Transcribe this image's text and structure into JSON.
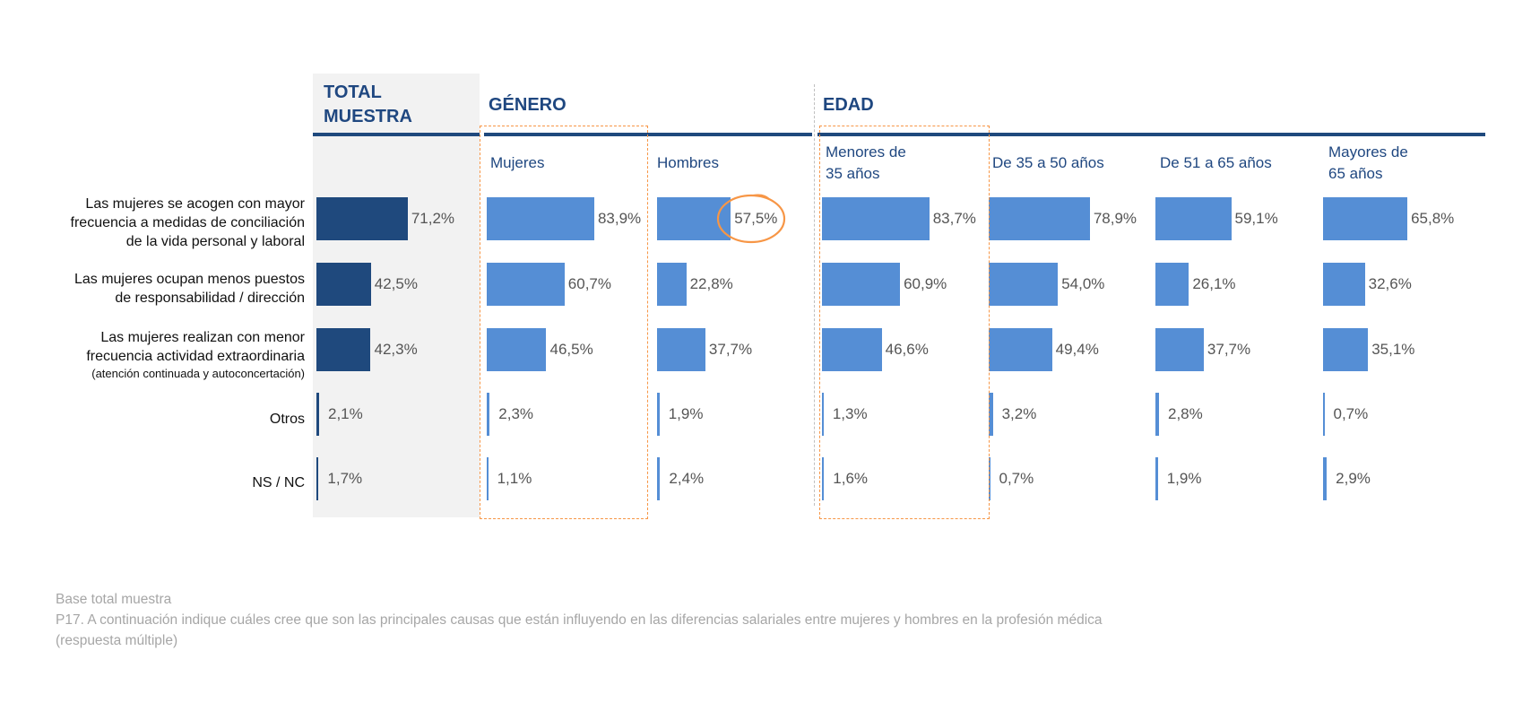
{
  "colors": {
    "total_bar": "#1f497d",
    "bar": "#558ed5",
    "header_blue": "#1f4780",
    "highlight": "#f79646",
    "panel_bg": "#f2f2f2"
  },
  "chart_data": {
    "type": "bar",
    "orientation": "horizontal",
    "categories": [
      {
        "lines": [
          "Las mujeres se acogen con mayor",
          "frecuencia a medidas de conciliación",
          "de la vida personal y laboral"
        ],
        "sub": ""
      },
      {
        "lines": [
          "Las mujeres ocupan menos puestos",
          "de responsabilidad / dirección"
        ],
        "sub": ""
      },
      {
        "lines": [
          "Las mujeres realizan con menor",
          "frecuencia actividad extraordinaria"
        ],
        "sub": "(atención continuada y autoconcertación)"
      },
      {
        "lines": [
          "Otros"
        ],
        "sub": ""
      },
      {
        "lines": [
          "NS / NC"
        ],
        "sub": ""
      }
    ],
    "groups": [
      {
        "title_lines": [
          "TOTAL",
          "MUESTRA"
        ]
      },
      {
        "title_lines": [
          "GÉNERO"
        ]
      },
      {
        "title_lines": [
          "EDAD"
        ]
      }
    ],
    "series": [
      {
        "group": 0,
        "title_lines": [],
        "values": [
          71.2,
          42.5,
          42.3,
          2.1,
          1.7
        ],
        "labels": [
          "71,2%",
          "42,5%",
          "42,3%",
          "2,1%",
          "1,7%"
        ]
      },
      {
        "group": 1,
        "title_lines": [
          "Mujeres"
        ],
        "values": [
          83.9,
          60.7,
          46.5,
          2.3,
          1.1
        ],
        "labels": [
          "83,9%",
          "60,7%",
          "46,5%",
          "2,3%",
          "1,1%"
        ]
      },
      {
        "group": 1,
        "title_lines": [
          "Hombres"
        ],
        "values": [
          57.5,
          22.8,
          37.7,
          1.9,
          2.4
        ],
        "labels": [
          "57,5%",
          "22,8%",
          "37,7%",
          "1,9%",
          "2,4%"
        ]
      },
      {
        "group": 2,
        "title_lines": [
          "Menores de",
          "35 años"
        ],
        "values": [
          83.7,
          60.9,
          46.6,
          1.3,
          1.6
        ],
        "labels": [
          "83,7%",
          "60,9%",
          "46,6%",
          "1,3%",
          "1,6%"
        ]
      },
      {
        "group": 2,
        "title_lines": [
          "De 35 a 50 años"
        ],
        "values": [
          78.9,
          54.0,
          49.4,
          3.2,
          0.7
        ],
        "labels": [
          "78,9%",
          "54,0%",
          "49,4%",
          "3,2%",
          "0,7%"
        ]
      },
      {
        "group": 2,
        "title_lines": [
          "De 51 a 65 años"
        ],
        "values": [
          59.1,
          26.1,
          37.7,
          2.8,
          1.9
        ],
        "labels": [
          "59,1%",
          "26,1%",
          "37,7%",
          "2,8%",
          "1,9%"
        ]
      },
      {
        "group": 2,
        "title_lines": [
          "Mayores de",
          " 65 años"
        ],
        "values": [
          65.8,
          32.6,
          35.1,
          0.7,
          2.9
        ],
        "labels": [
          "65,8%",
          "32,6%",
          "35,1%",
          "0,7%",
          "2,9%"
        ]
      }
    ],
    "highlighted_boxes": [
      "Mujeres",
      "Menores de 35 años"
    ],
    "circled_value": {
      "series": 2,
      "category": 0
    },
    "xlim": [
      0,
      100
    ]
  },
  "notes": [
    "Base total muestra",
    "P17. A continuación indique cuáles cree que son las principales causas que están influyendo en las diferencias salariales entre mujeres y hombres en la profesión médica",
    "(respuesta múltiple)"
  ]
}
